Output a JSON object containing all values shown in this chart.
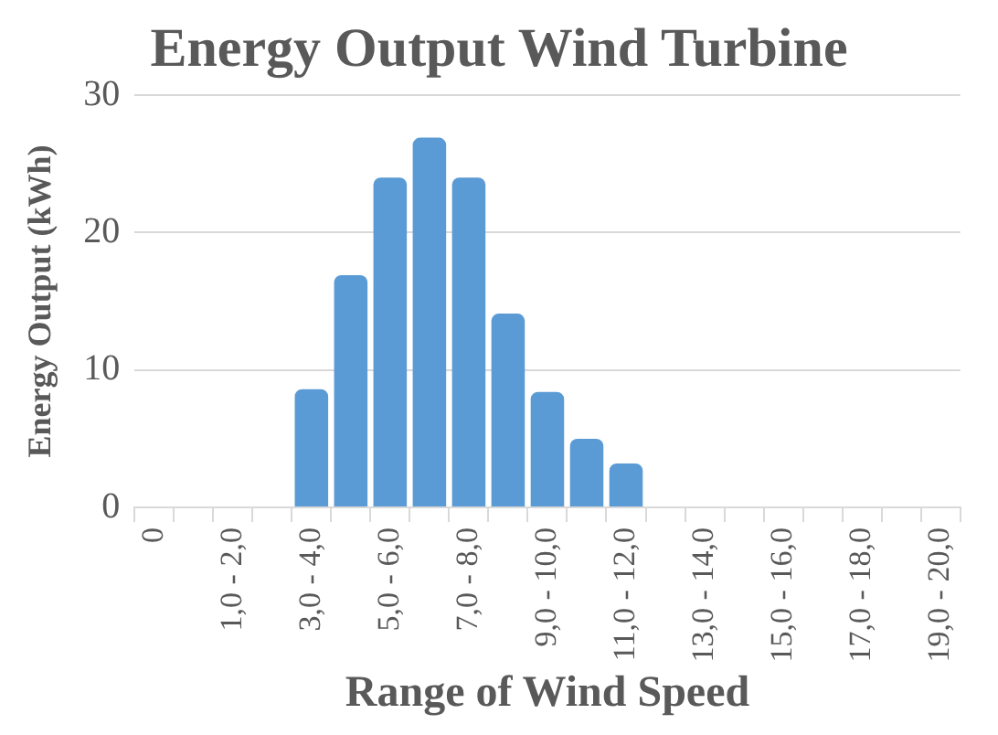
{
  "chart_data": {
    "type": "bar",
    "title": "Energy Output Wind Turbine",
    "xlabel": "Range of Wind Speed",
    "ylabel": "Energy Output (kWh)",
    "categories": [
      "0",
      null,
      "1,0 - 2,0",
      null,
      "3,0 - 4,0",
      null,
      "5,0 - 6,0",
      null,
      "7,0 - 8,0",
      null,
      "9,0 - 10,0",
      null,
      "11,0 - 12,0",
      null,
      "13,0 - 14,0",
      null,
      "15,0 - 16,0",
      null,
      "17,0 - 18,0",
      null,
      "19,0 - 20,0"
    ],
    "values": [
      0,
      0,
      0,
      0,
      8.6,
      16.9,
      24.0,
      26.9,
      24.0,
      14.1,
      8.4,
      5.0,
      3.2,
      0,
      0,
      0,
      0,
      0,
      0,
      0,
      0
    ],
    "color": "#5b9bd5",
    "ylim": [
      0,
      30
    ],
    "yticks": [
      0,
      10,
      20,
      30
    ],
    "grid": "y",
    "legend": false
  }
}
